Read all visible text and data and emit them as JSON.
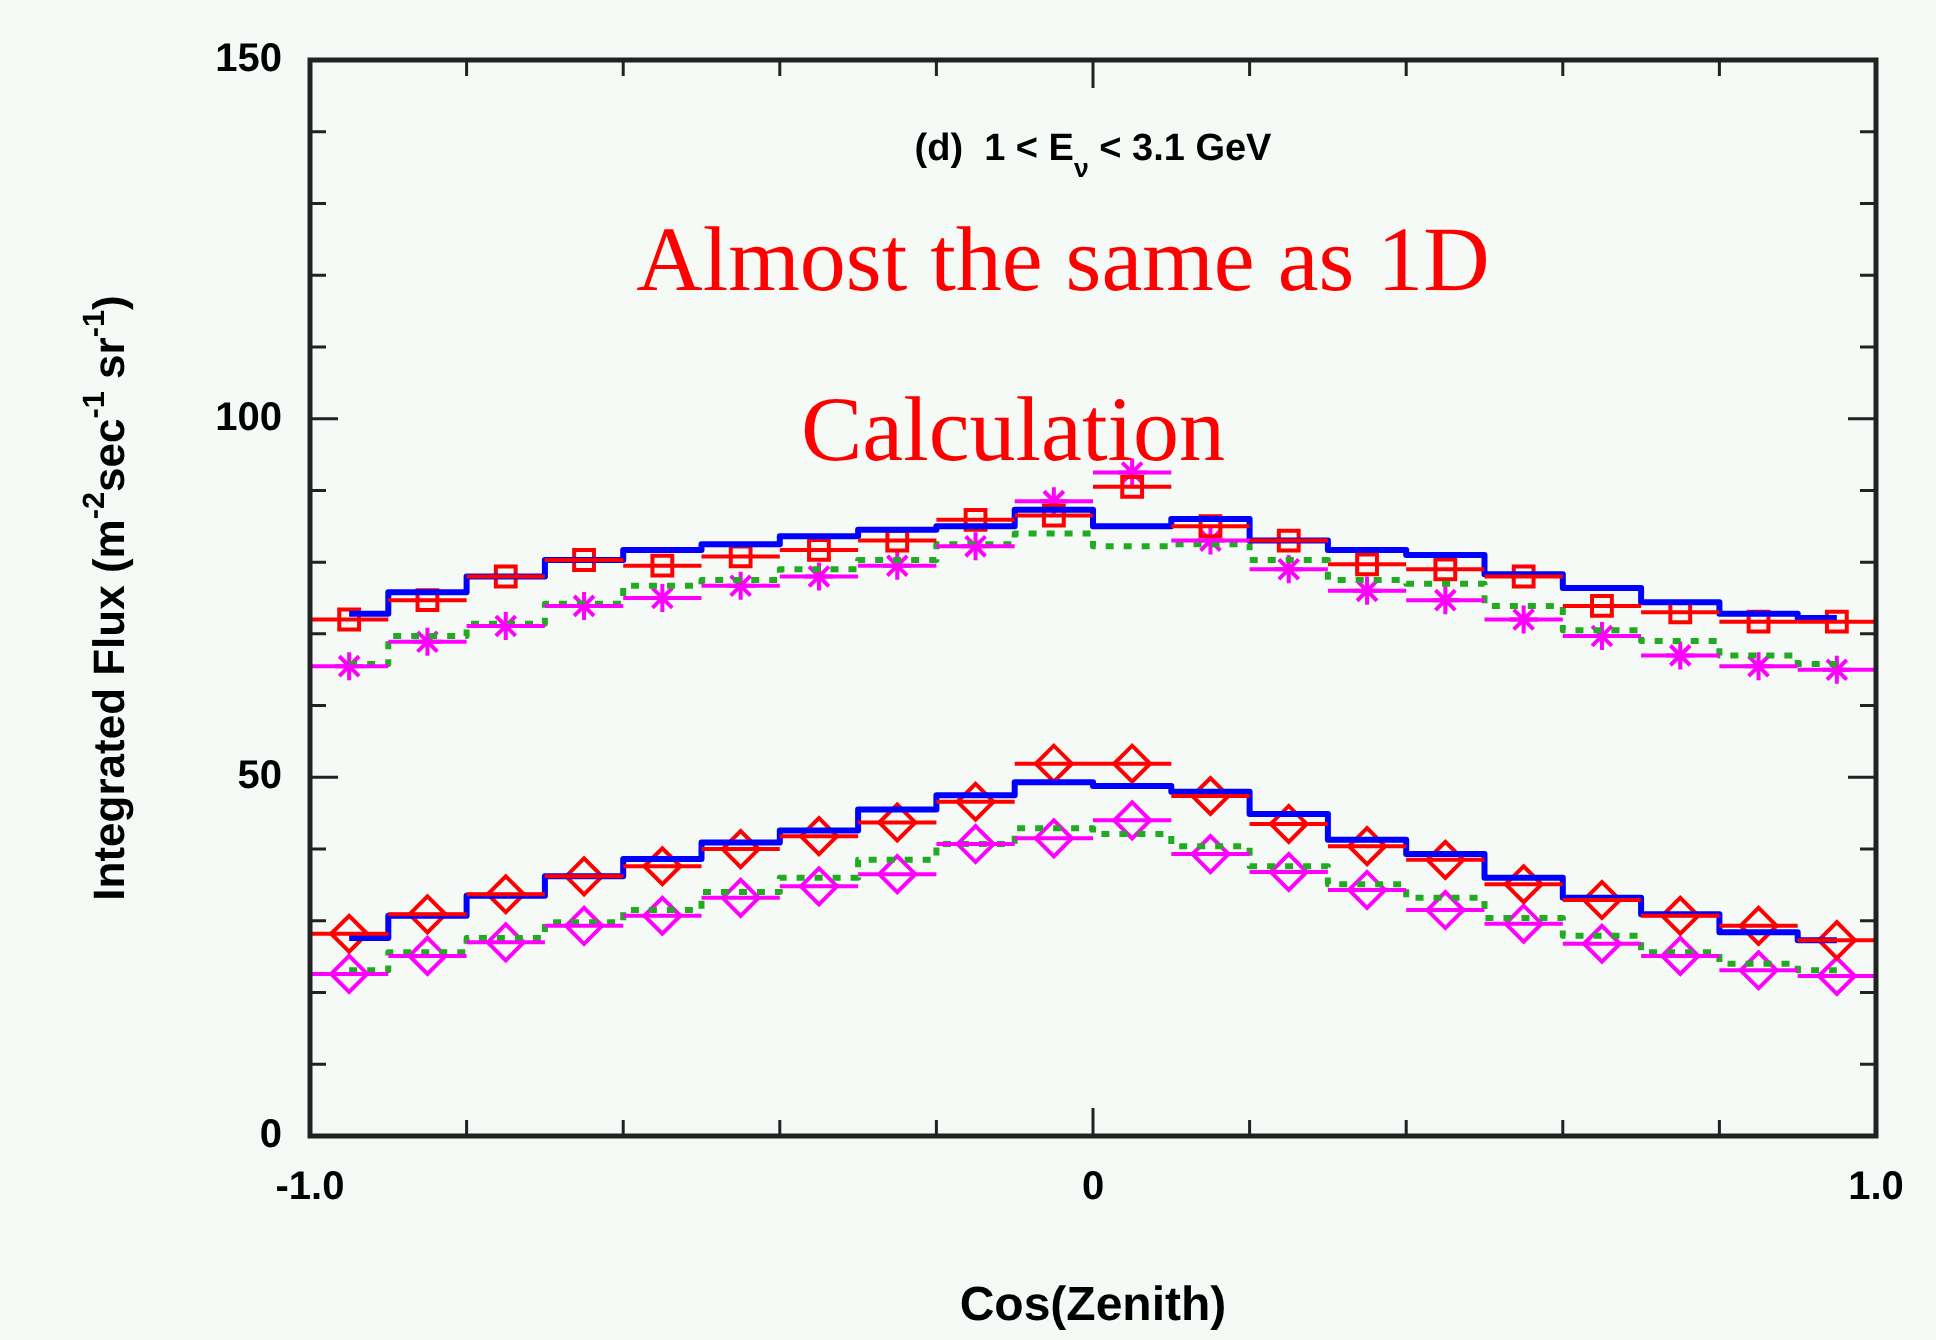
{
  "chart_data": {
    "type": "scatter",
    "title": "(d)  1 < E$_{ν}$ < 3.1 GeV",
    "xlabel": "Cos(Zenith)",
    "ylabel": "Integrated Flux (m$^{-2}$sec$^{-1}$ sr$^{-1}$)",
    "annotations": [
      "Almost the same as 1D Calculation"
    ],
    "x": [
      -0.95,
      -0.85,
      -0.75,
      -0.65,
      -0.55,
      -0.45,
      -0.35,
      -0.25,
      -0.15,
      -0.05,
      0.05,
      0.15,
      0.25,
      0.35,
      0.45,
      0.55,
      0.65,
      0.75,
      0.85,
      0.95
    ],
    "xlim": [
      -1,
      1
    ],
    "xticks": [
      {
        "value": -1,
        "label": "-1.0"
      },
      {
        "value": -0.8,
        "label": null
      },
      {
        "value": -0.6,
        "label": null
      },
      {
        "value": -0.4,
        "label": null
      },
      {
        "value": -0.2,
        "label": null
      },
      0,
      {
        "value": 0.2,
        "label": null
      },
      {
        "value": 0.4,
        "label": null
      },
      {
        "value": 0.6,
        "label": null
      },
      {
        "value": 0.8,
        "label": null
      },
      {
        "value": 1,
        "label": "1.0"
      }
    ],
    "ylim": [
      0,
      150
    ],
    "yticks": [
      0,
      {
        "value": 10,
        "label": null
      },
      {
        "value": 20,
        "label": null
      },
      {
        "value": 30,
        "label": null
      },
      {
        "value": 40,
        "label": null
      },
      50,
      {
        "value": 60,
        "label": null
      },
      {
        "value": 70,
        "label": null
      },
      {
        "value": 80,
        "label": null
      },
      {
        "value": 90,
        "label": null
      },
      100,
      {
        "value": 110,
        "label": null
      },
      {
        "value": 120,
        "label": null
      },
      {
        "value": 130,
        "label": null
      },
      {
        "value": 140,
        "label": null
      },
      150
    ],
    "grid": false,
    "legend": false,
    "series": [
      {
        "type": "step",
        "color": "#0000ff",
        "line_style": "solid",
        "values": [
          72.8,
          75.8,
          78,
          80.3,
          81.7,
          82.5,
          83.6,
          84.5,
          85,
          87.3,
          85,
          86,
          83,
          81.7,
          81,
          78.3,
          76.4,
          74.4,
          72.8,
          72.2
        ]
      },
      {
        "type": "step",
        "color": "#22aa22",
        "line_style": "dotted",
        "values": [
          65.8,
          69.7,
          71.4,
          74.2,
          76.7,
          77.5,
          79,
          80.3,
          82.5,
          84,
          82.2,
          82.5,
          80.3,
          77.5,
          77,
          73.9,
          70.5,
          69,
          67,
          65.8
        ]
      },
      {
        "color": "#ff0000",
        "marker": "square",
        "xerrors": [
          0.05,
          0.05,
          0.05,
          0.05,
          0.05,
          0.05,
          0.05,
          0.05,
          0.05,
          0.05,
          0.05,
          0.05,
          0.05,
          0.05,
          0.05,
          0.05,
          0.05,
          0.05,
          0.05,
          0.05
        ],
        "values": [
          72,
          74.7,
          78,
          80.3,
          79.5,
          80.8,
          81.7,
          83,
          85.9,
          86.5,
          90.5,
          85,
          83,
          79.7,
          79,
          78,
          73.9,
          73,
          71.7,
          71.7
        ]
      },
      {
        "color": "#ff00ff",
        "marker": "cross",
        "xerrors": [
          0.05,
          0.05,
          0.05,
          0.05,
          0.05,
          0.05,
          0.05,
          0.05,
          0.05,
          0.05,
          0.05,
          0.05,
          0.05,
          0.05,
          0.05,
          0.05,
          0.05,
          0.05,
          0.05,
          0.05
        ],
        "values": [
          65.5,
          68.9,
          71.1,
          73.9,
          75,
          76.7,
          78,
          79.5,
          82.2,
          88.5,
          92.5,
          83,
          79,
          76,
          74.7,
          72,
          69.7,
          67,
          65.5,
          65
        ]
      },
      {
        "type": "step",
        "color": "#0000ff",
        "line_style": "solid",
        "values": [
          27.6,
          30.7,
          33.5,
          36.2,
          38.6,
          40.9,
          42.6,
          45.5,
          47.5,
          49.3,
          48.8,
          48,
          44.9,
          41.3,
          39.3,
          36,
          33.2,
          30.9,
          28.4,
          27.3
        ]
      },
      {
        "type": "step",
        "color": "#22aa22",
        "line_style": "dotted",
        "values": [
          23.1,
          25.6,
          27.6,
          29.8,
          31.5,
          34,
          36,
          38.5,
          40.7,
          42.9,
          42.1,
          40.4,
          37.6,
          35.1,
          33.2,
          30.4,
          27.9,
          25.6,
          24,
          23.1
        ]
      },
      {
        "color": "#ff0000",
        "marker": "diamond",
        "xerrors": [
          0.05,
          0.05,
          0.05,
          0.05,
          0.05,
          0.05,
          0.05,
          0.05,
          0.05,
          0.05,
          0.05,
          0.05,
          0.05,
          0.05,
          0.05,
          0.05,
          0.05,
          0.05,
          0.05,
          0.05
        ],
        "values": [
          28.2,
          30.9,
          33.7,
          36.2,
          37.6,
          40,
          41.8,
          43.7,
          46.6,
          51.9,
          51.9,
          47.4,
          43.5,
          40.4,
          38.5,
          35.1,
          32.9,
          30.7,
          29.3,
          27.3
        ]
      },
      {
        "color": "#ff00ff",
        "marker": "diamond",
        "xerrors": [
          0.05,
          0.05,
          0.05,
          0.05,
          0.05,
          0.05,
          0.05,
          0.05,
          0.05,
          0.05,
          0.05,
          0.05,
          0.05,
          0.05,
          0.05,
          0.05,
          0.05,
          0.05,
          0.05,
          0.05
        ],
        "values": [
          22.6,
          25.1,
          27,
          29.3,
          30.7,
          33.2,
          34.8,
          36.5,
          40.7,
          41.5,
          44,
          39.3,
          36.8,
          34.3,
          31.5,
          29.6,
          26.8,
          25.1,
          23.1,
          22.3
        ]
      }
    ]
  }
}
